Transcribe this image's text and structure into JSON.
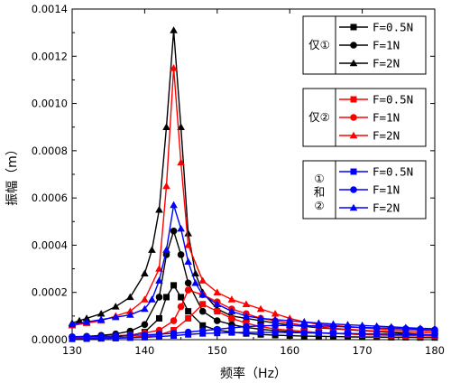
{
  "chart_data": {
    "type": "line",
    "xlabel": "频率（Hz）",
    "ylabel": "振幅（m）",
    "xlim": [
      130,
      180
    ],
    "ylim": [
      0,
      0.0014
    ],
    "x_ticks": [
      "130",
      "140",
      "150",
      "160",
      "170",
      "180"
    ],
    "y_ticks": [
      "0.0000",
      "0.0002",
      "0.0004",
      "0.0006",
      "0.0008",
      "0.0010",
      "0.0012",
      "0.0014"
    ],
    "legend_placement": "right",
    "groups": [
      {
        "label": "仅①",
        "color": "#000000",
        "series": [
          {
            "name": "F=0.5N",
            "marker": "square",
            "x": [
              130,
              132,
              134,
              136,
              138,
              140,
              142,
              143,
              144,
              145,
              146,
              148,
              150,
              152,
              154,
              156,
              158,
              160,
              162,
              164,
              166,
              168,
              170,
              172,
              174,
              176,
              178,
              180
            ],
            "y": [
              6e-06,
              7e-06,
              9e-06,
              1.2e-05,
              1.8e-05,
              3.2e-05,
              9e-05,
              0.00018,
              0.00023,
              0.00018,
              0.00012,
              6e-05,
              4e-05,
              3.2e-05,
              2.6e-05,
              2.2e-05,
              1.9e-05,
              1.7e-05,
              1.5e-05,
              1.4e-05,
              1.3e-05,
              1.2e-05,
              1.1e-05,
              1.1e-05,
              1e-05,
              1e-05,
              9e-06,
              9e-06
            ]
          },
          {
            "name": "F=1N",
            "marker": "circle",
            "x": [
              130,
              132,
              134,
              136,
              138,
              140,
              142,
              143,
              144,
              145,
              146,
              148,
              150,
              152,
              154,
              156,
              158,
              160,
              162,
              164,
              166,
              168,
              170,
              172,
              174,
              176,
              178,
              180
            ],
            "y": [
              1.2e-05,
              1.4e-05,
              1.8e-05,
              2.4e-05,
              3.6e-05,
              6.4e-05,
              0.00018,
              0.00036,
              0.00046,
              0.00036,
              0.00024,
              0.00012,
              8e-05,
              6.4e-05,
              5.2e-05,
              4.4e-05,
              3.8e-05,
              3.4e-05,
              3e-05,
              2.8e-05,
              2.6e-05,
              2.4e-05,
              2.2e-05,
              2.2e-05,
              2e-05,
              2e-05,
              1.8e-05,
              1.8e-05
            ]
          },
          {
            "name": "F=2N",
            "marker": "triangle",
            "x": [
              130,
              131,
              132,
              134,
              136,
              138,
              140,
              141,
              142,
              143,
              144,
              145,
              146,
              147,
              148,
              150,
              152,
              154,
              156,
              158,
              160,
              162,
              164,
              166,
              168,
              170,
              172,
              174,
              176,
              178,
              180
            ],
            "y": [
              7e-05,
              8e-05,
              9e-05,
              0.00011,
              0.00014,
              0.00018,
              0.00028,
              0.00038,
              0.00055,
              0.0009,
              0.00131,
              0.0009,
              0.00045,
              0.00028,
              0.0002,
              0.00013,
              0.0001,
              9e-05,
              8e-05,
              7e-05,
              6.2e-05,
              5.6e-05,
              5e-05,
              4.6e-05,
              4.2e-05,
              3.8e-05,
              3.4e-05,
              3e-05,
              2.6e-05,
              2.2e-05,
              1.8e-05
            ]
          }
        ]
      },
      {
        "label": "仅②",
        "color": "#ff0000",
        "series": [
          {
            "name": "F=0.5N",
            "marker": "square",
            "x": [
              130,
              132,
              134,
              136,
              138,
              140,
              142,
              144,
              146,
              148,
              150,
              152,
              154,
              156,
              158,
              160,
              162,
              164,
              166,
              168,
              170,
              172,
              174,
              176,
              178,
              180
            ],
            "y": [
              4e-06,
              5e-06,
              6e-06,
              8e-06,
              1e-05,
              1.4e-05,
              2e-05,
              4e-05,
              9e-05,
              0.00015,
              0.00012,
              9e-05,
              7e-05,
              5.5e-05,
              4.5e-05,
              4e-05,
              3.5e-05,
              3e-05,
              2.7e-05,
              2.4e-05,
              2.2e-05,
              2e-05,
              1.8e-05,
              1.7e-05,
              1.6e-05,
              1.5e-05
            ]
          },
          {
            "name": "F=1N",
            "marker": "circle",
            "x": [
              130,
              132,
              134,
              136,
              138,
              140,
              142,
              144,
              145,
              146,
              148,
              150,
              152,
              154,
              156,
              158,
              160,
              162,
              164,
              166,
              168,
              170,
              172,
              174,
              176,
              178,
              180
            ],
            "y": [
              8e-06,
              1e-05,
              1.2e-05,
              1.6e-05,
              2e-05,
              2.8e-05,
              4e-05,
              8e-05,
              0.00014,
              0.00021,
              0.00019,
              0.00016,
              0.00013,
              0.00011,
              9e-05,
              8e-05,
              7e-05,
              6e-05,
              5.4e-05,
              4.8e-05,
              4.4e-05,
              4e-05,
              3.6e-05,
              3.4e-05,
              3.2e-05,
              3e-05,
              2.8e-05
            ]
          },
          {
            "name": "F=2N",
            "marker": "triangle",
            "x": [
              130,
              132,
              134,
              136,
              138,
              140,
              142,
              143,
              144,
              145,
              146,
              148,
              150,
              152,
              154,
              156,
              158,
              160,
              162,
              164,
              166,
              168,
              170,
              172,
              174,
              176,
              178,
              180
            ],
            "y": [
              6e-05,
              7e-05,
              8e-05,
              0.0001,
              0.00012,
              0.00017,
              0.0003,
              0.00065,
              0.00115,
              0.00075,
              0.0004,
              0.00025,
              0.0002,
              0.00017,
              0.00015,
              0.00013,
              0.00011,
              9e-05,
              7.5e-05,
              6.5e-05,
              6e-05,
              5.5e-05,
              5e-05,
              4.5e-05,
              4.2e-05,
              4e-05,
              3.8e-05,
              3.6e-05
            ]
          }
        ]
      },
      {
        "label": "①和②",
        "color": "#0000ff",
        "series": [
          {
            "name": "F=0.5N",
            "marker": "square",
            "x": [
              130,
              132,
              134,
              136,
              138,
              140,
              142,
              144,
              146,
              148,
              150,
              152,
              154,
              156,
              158,
              160,
              162,
              164,
              166,
              168,
              170,
              172,
              174,
              176,
              178,
              180
            ],
            "y": [
              3e-06,
              4e-06,
              5e-06,
              6e-06,
              8e-06,
              1e-05,
              1.3e-05,
              1.7e-05,
              2.2e-05,
              2.6e-05,
              2.8e-05,
              3e-05,
              3.1e-05,
              3.1e-05,
              3.1e-05,
              3e-05,
              2.9e-05,
              2.8e-05,
              2.7e-05,
              2.6e-05,
              2.5e-05,
              2.4e-05,
              2.3e-05,
              2.2e-05,
              2.1e-05,
              2e-05
            ]
          },
          {
            "name": "F=1N",
            "marker": "circle",
            "x": [
              130,
              132,
              134,
              136,
              138,
              140,
              142,
              144,
              146,
              148,
              150,
              152,
              154,
              156,
              158,
              160,
              162,
              164,
              166,
              168,
              170,
              172,
              174,
              176,
              178,
              180
            ],
            "y": [
              1.2e-05,
              1.3e-05,
              1.4e-05,
              1.6e-05,
              1.8e-05,
              2e-05,
              2.3e-05,
              2.7e-05,
              3.2e-05,
              3.8e-05,
              4.4e-05,
              5e-05,
              5.5e-05,
              5.8e-05,
              6e-05,
              6e-05,
              5.9e-05,
              5.8e-05,
              5.6e-05,
              5.4e-05,
              5.2e-05,
              5e-05,
              4.8e-05,
              4.6e-05,
              4.4e-05,
              4.2e-05
            ]
          },
          {
            "name": "F=2N",
            "marker": "triangle",
            "x": [
              130,
              132,
              134,
              136,
              138,
              140,
              141,
              142,
              143,
              144,
              145,
              146,
              147,
              148,
              150,
              152,
              154,
              156,
              158,
              160,
              162,
              164,
              166,
              168,
              170,
              172,
              174,
              176,
              178,
              180
            ],
            "y": [
              6.5e-05,
              7.5e-05,
              8.5e-05,
              9.5e-05,
              0.000105,
              0.00013,
              0.00017,
              0.00025,
              0.00038,
              0.00057,
              0.00047,
              0.00033,
              0.00024,
              0.00019,
              0.00015,
              0.00012,
              0.0001,
              9e-05,
              8.5e-05,
              8e-05,
              7.5e-05,
              7e-05,
              6.6e-05,
              6.3e-05,
              6e-05,
              5.7e-05,
              5.4e-05,
              5.1e-05,
              4.8e-05,
              4.6e-05
            ]
          }
        ]
      }
    ]
  }
}
